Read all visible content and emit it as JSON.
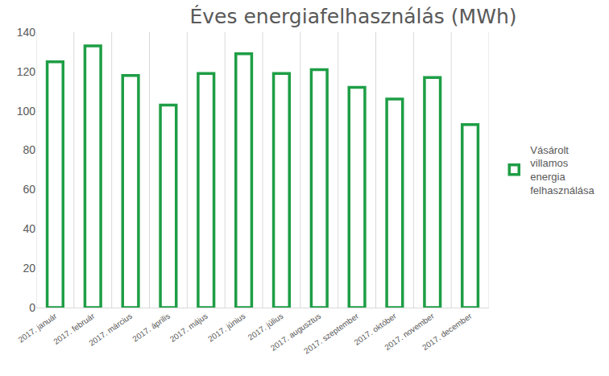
{
  "chart_data": {
    "type": "bar",
    "title": "Éves energiafelhasználás (MWh)",
    "categories": [
      "2017. január",
      "2017. február",
      "2017. március",
      "2017. április",
      "2017. május",
      "2017. június",
      "2017. július",
      "2017. augusztus",
      "2017. szeptember",
      "2017. október",
      "2017. november",
      "2017. december"
    ],
    "series": [
      {
        "name": "Vásárolt villamos energia felhasználása",
        "color": "#1e9e46",
        "values": [
          125,
          133,
          118,
          103,
          119,
          129,
          119,
          121,
          112,
          106,
          117,
          93
        ]
      }
    ],
    "ylim": [
      0,
      140
    ],
    "yticks": [
      0,
      20,
      40,
      60,
      80,
      100,
      120,
      140
    ],
    "grid": true,
    "legend": "right"
  }
}
